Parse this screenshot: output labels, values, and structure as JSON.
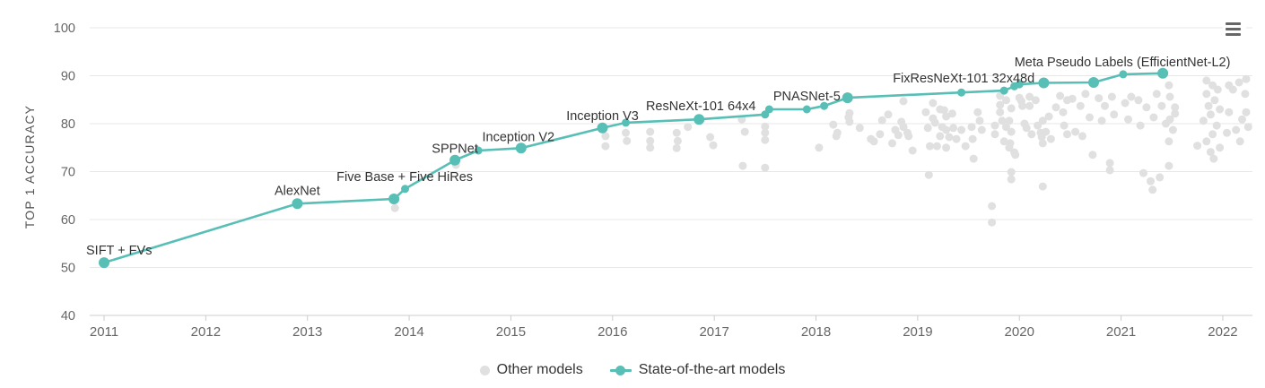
{
  "menu": {
    "icon": "hamburger-menu-icon"
  },
  "chart_data": {
    "type": "scatter",
    "title": "",
    "xlabel": "",
    "ylabel": "TOP 1 ACCURACY",
    "x_ticks": [
      2011,
      2012,
      2013,
      2014,
      2015,
      2016,
      2017,
      2018,
      2019,
      2020,
      2021,
      2022
    ],
    "y_ticks": [
      40,
      50,
      60,
      70,
      80,
      90,
      100
    ],
    "xlim": [
      2010.86,
      2022.29
    ],
    "ylim": [
      40,
      100
    ],
    "grid": "horizontal",
    "legend_position": "bottom-center",
    "colors": {
      "sota": "#57bfb6",
      "other": "#e0e0e0",
      "grid": "#e7e7e7",
      "axis": "#cccccc",
      "tick_text": "#666666",
      "label_text": "#333333",
      "axis_title": "#555555"
    },
    "series": [
      {
        "name": "Other models",
        "type": "scatter",
        "points": [
          [
            2013.86,
            62.4
          ],
          [
            2014.46,
            71.4
          ],
          [
            2015.93,
            77.4
          ],
          [
            2015.93,
            75.3
          ],
          [
            2016.13,
            78.1
          ],
          [
            2016.14,
            76.4
          ],
          [
            2016.37,
            78.3
          ],
          [
            2016.37,
            76.4
          ],
          [
            2016.37,
            75.0
          ],
          [
            2016.63,
            78.1
          ],
          [
            2016.64,
            76.4
          ],
          [
            2016.63,
            74.9
          ],
          [
            2016.74,
            79.3
          ],
          [
            2016.96,
            77.2
          ],
          [
            2016.99,
            75.5
          ],
          [
            2017.27,
            80.9
          ],
          [
            2017.3,
            78.3
          ],
          [
            2017.28,
            71.2
          ],
          [
            2017.5,
            79.4
          ],
          [
            2017.5,
            78.1
          ],
          [
            2017.5,
            76.6
          ],
          [
            2017.5,
            70.8
          ],
          [
            2018.03,
            75.0
          ],
          [
            2018.17,
            79.8
          ],
          [
            2018.2,
            77.4
          ],
          [
            2018.21,
            78.1
          ],
          [
            2018.32,
            81.3
          ],
          [
            2018.33,
            82.2
          ],
          [
            2018.33,
            80.4
          ],
          [
            2018.43,
            79.1
          ],
          [
            2018.54,
            76.8
          ],
          [
            2018.57,
            76.3
          ],
          [
            2018.63,
            77.8
          ],
          [
            2018.65,
            80.7
          ],
          [
            2018.71,
            81.9
          ],
          [
            2018.75,
            75.9
          ],
          [
            2018.78,
            78.7
          ],
          [
            2018.81,
            77.6
          ],
          [
            2018.84,
            80.4
          ],
          [
            2018.86,
            84.7
          ],
          [
            2018.86,
            79.3
          ],
          [
            2018.9,
            78.1
          ],
          [
            2018.91,
            77.4
          ],
          [
            2018.95,
            74.4
          ],
          [
            2019.08,
            82.4
          ],
          [
            2019.1,
            79.1
          ],
          [
            2019.11,
            69.3
          ],
          [
            2019.12,
            75.3
          ],
          [
            2019.15,
            84.3
          ],
          [
            2019.15,
            81.1
          ],
          [
            2019.17,
            80.2
          ],
          [
            2019.19,
            75.3
          ],
          [
            2019.22,
            83.0
          ],
          [
            2019.22,
            77.4
          ],
          [
            2019.24,
            79.3
          ],
          [
            2019.26,
            82.8
          ],
          [
            2019.28,
            81.5
          ],
          [
            2019.28,
            78.7
          ],
          [
            2019.28,
            75.0
          ],
          [
            2019.31,
            77.2
          ],
          [
            2019.34,
            82.1
          ],
          [
            2019.35,
            79.1
          ],
          [
            2019.38,
            76.8
          ],
          [
            2019.43,
            78.7
          ],
          [
            2019.47,
            75.3
          ],
          [
            2019.53,
            79.3
          ],
          [
            2019.54,
            76.8
          ],
          [
            2019.55,
            72.7
          ],
          [
            2019.59,
            82.4
          ],
          [
            2019.61,
            80.6
          ],
          [
            2019.63,
            78.7
          ],
          [
            2019.73,
            62.8
          ],
          [
            2019.73,
            59.4
          ],
          [
            2019.76,
            79.6
          ],
          [
            2019.76,
            77.8
          ],
          [
            2019.81,
            85.8
          ],
          [
            2019.81,
            83.9
          ],
          [
            2019.81,
            82.4
          ],
          [
            2019.83,
            80.6
          ],
          [
            2019.85,
            76.3
          ],
          [
            2019.87,
            84.9
          ],
          [
            2019.87,
            79.3
          ],
          [
            2019.9,
            80.6
          ],
          [
            2019.9,
            75.0
          ],
          [
            2019.91,
            75.9
          ],
          [
            2019.92,
            83.2
          ],
          [
            2019.92,
            78.3
          ],
          [
            2019.92,
            69.9
          ],
          [
            2019.92,
            68.4
          ],
          [
            2019.95,
            74.0
          ],
          [
            2019.96,
            73.5
          ],
          [
            2020.0,
            85.4
          ],
          [
            2020.02,
            84.7
          ],
          [
            2020.03,
            83.7
          ],
          [
            2020.05,
            80.0
          ],
          [
            2020.07,
            79.1
          ],
          [
            2020.1,
            85.6
          ],
          [
            2020.1,
            83.7
          ],
          [
            2020.12,
            77.8
          ],
          [
            2020.16,
            84.9
          ],
          [
            2020.18,
            79.6
          ],
          [
            2020.21,
            78.1
          ],
          [
            2020.22,
            77.2
          ],
          [
            2020.23,
            80.6
          ],
          [
            2020.23,
            75.9
          ],
          [
            2020.23,
            66.9
          ],
          [
            2020.26,
            78.3
          ],
          [
            2020.29,
            81.5
          ],
          [
            2020.31,
            76.8
          ],
          [
            2020.36,
            83.4
          ],
          [
            2020.4,
            85.8
          ],
          [
            2020.43,
            82.4
          ],
          [
            2020.44,
            79.6
          ],
          [
            2020.47,
            84.9
          ],
          [
            2020.47,
            77.8
          ],
          [
            2020.52,
            85.2
          ],
          [
            2020.55,
            78.3
          ],
          [
            2020.6,
            83.7
          ],
          [
            2020.62,
            77.4
          ],
          [
            2020.65,
            86.2
          ],
          [
            2020.69,
            81.3
          ],
          [
            2020.72,
            73.5
          ],
          [
            2020.78,
            85.3
          ],
          [
            2020.81,
            80.6
          ],
          [
            2020.84,
            83.7
          ],
          [
            2020.89,
            71.8
          ],
          [
            2020.89,
            70.3
          ],
          [
            2020.91,
            85.6
          ],
          [
            2020.93,
            81.9
          ],
          [
            2021.04,
            84.3
          ],
          [
            2021.07,
            80.9
          ],
          [
            2021.1,
            85.6
          ],
          [
            2021.17,
            84.9
          ],
          [
            2021.19,
            79.6
          ],
          [
            2021.22,
            69.7
          ],
          [
            2021.25,
            83.4
          ],
          [
            2021.29,
            68.0
          ],
          [
            2021.31,
            66.2
          ],
          [
            2021.32,
            81.3
          ],
          [
            2021.35,
            86.2
          ],
          [
            2021.38,
            68.8
          ],
          [
            2021.4,
            83.7
          ],
          [
            2021.44,
            80.0
          ],
          [
            2021.47,
            88.0
          ],
          [
            2021.47,
            76.3
          ],
          [
            2021.47,
            71.2
          ],
          [
            2021.48,
            85.6
          ],
          [
            2021.48,
            80.9
          ],
          [
            2021.51,
            78.7
          ],
          [
            2021.53,
            83.4
          ],
          [
            2021.53,
            82.1
          ],
          [
            2021.75,
            75.4
          ],
          [
            2021.81,
            80.6
          ],
          [
            2021.84,
            89.0
          ],
          [
            2021.84,
            86.2
          ],
          [
            2021.84,
            76.3
          ],
          [
            2021.86,
            83.7
          ],
          [
            2021.88,
            81.9
          ],
          [
            2021.88,
            74.1
          ],
          [
            2021.9,
            88.0
          ],
          [
            2021.9,
            77.8
          ],
          [
            2021.91,
            72.7
          ],
          [
            2021.92,
            84.9
          ],
          [
            2021.94,
            79.6
          ],
          [
            2021.95,
            87.1
          ],
          [
            2021.97,
            83.0
          ],
          [
            2021.97,
            75.0
          ],
          [
            2022.04,
            78.1
          ],
          [
            2022.06,
            88.0
          ],
          [
            2022.06,
            82.4
          ],
          [
            2022.1,
            87.1
          ],
          [
            2022.13,
            78.7
          ],
          [
            2022.16,
            88.6
          ],
          [
            2022.17,
            76.3
          ],
          [
            2022.19,
            80.9
          ],
          [
            2022.22,
            86.2
          ],
          [
            2022.23,
            89.3
          ],
          [
            2022.23,
            82.4
          ],
          [
            2022.25,
            79.3
          ]
        ]
      },
      {
        "name": "State-of-the-art models",
        "type": "line",
        "points": [
          {
            "year": 2011.0,
            "acc": 51.0,
            "big": true,
            "label": "SIFT + FVs",
            "anchor": "start",
            "dx": -20,
            "dy": -9
          },
          {
            "year": 2012.9,
            "acc": 63.3,
            "big": true,
            "label": "AlexNet",
            "anchor": "middle",
            "dx": 0,
            "dy": -10
          },
          {
            "year": 2013.85,
            "acc": 64.3,
            "big": true,
            "label": "Five Base + Five HiRes",
            "anchor": "middle",
            "dx": 12,
            "dy": -20
          },
          {
            "year": 2013.96,
            "acc": 66.4
          },
          {
            "year": 2014.45,
            "acc": 72.4,
            "big": true,
            "label": "SPPNet",
            "anchor": "middle",
            "dx": 0,
            "dy": -8
          },
          {
            "year": 2014.68,
            "acc": 74.4
          },
          {
            "year": 2015.1,
            "acc": 74.9,
            "big": true,
            "label": "Inception V2",
            "anchor": "middle",
            "dx": -3,
            "dy": -8
          },
          {
            "year": 2015.9,
            "acc": 79.1,
            "big": true,
            "label": "Inception V3",
            "anchor": "middle",
            "dx": 0,
            "dy": -9
          },
          {
            "year": 2016.13,
            "acc": 80.2
          },
          {
            "year": 2016.85,
            "acc": 80.9,
            "big": true,
            "label": "ResNeXt-101 64x4",
            "anchor": "middle",
            "dx": 2,
            "dy": -10
          },
          {
            "year": 2017.5,
            "acc": 81.9
          },
          {
            "year": 2017.54,
            "acc": 83.0
          },
          {
            "year": 2017.91,
            "acc": 83.0,
            "label": "PNASNet-5",
            "anchor": "middle",
            "dx": 0,
            "dy": -10
          },
          {
            "year": 2018.08,
            "acc": 83.7
          },
          {
            "year": 2018.31,
            "acc": 85.4,
            "big": true
          },
          {
            "year": 2019.43,
            "acc": 86.5
          },
          {
            "year": 2019.85,
            "acc": 86.9,
            "label": "FixResNeXt-101 32x48d",
            "anchor": "middle",
            "dx": -45,
            "dy": -9
          },
          {
            "year": 2019.95,
            "acc": 87.8
          },
          {
            "year": 2020.0,
            "acc": 88.2
          },
          {
            "year": 2020.24,
            "acc": 88.5,
            "big": true
          },
          {
            "year": 2020.73,
            "acc": 88.6,
            "big": true
          },
          {
            "year": 2021.02,
            "acc": 90.3
          },
          {
            "year": 2021.41,
            "acc": 90.5,
            "big": true,
            "label": "Meta Pseudo Labels (EfficientNet-L2)",
            "anchor": "middle",
            "dx": -45,
            "dy": -8
          }
        ]
      }
    ]
  }
}
